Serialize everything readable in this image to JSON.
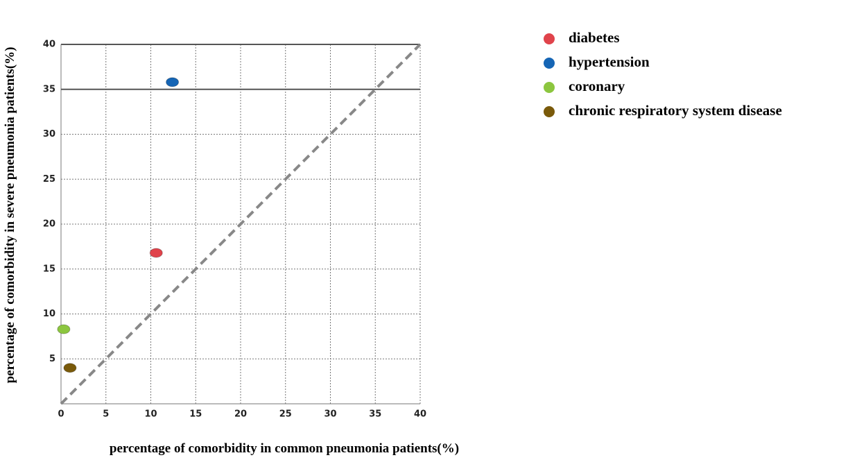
{
  "chart_data": {
    "type": "scatter",
    "x_label": "percentage of comorbidity in common pneumonia patients(%)",
    "y_label": "percentage of comorbidity in severe pneumonia patients(%)",
    "series": [
      {
        "name": "diabetes",
        "color": "#e0434b",
        "x": [
          10.6
        ],
        "values": [
          16.8
        ]
      },
      {
        "name": "hypertension",
        "color": "#1565b5",
        "x": [
          12.4
        ],
        "values": [
          35.8
        ]
      },
      {
        "name": "coronary",
        "color": "#8cc63f",
        "x": [
          0.3
        ],
        "values": [
          8.3
        ]
      },
      {
        "name": "chronic respiratory system disease",
        "color": "#7a5a0a",
        "x": [
          1.0
        ],
        "values": [
          4.0
        ]
      }
    ],
    "xlim": [
      0,
      40
    ],
    "ylim": [
      0,
      40
    ],
    "xticks": [
      0,
      5,
      10,
      15,
      20,
      25,
      30,
      35,
      40
    ],
    "yticks": [
      5,
      10,
      15,
      20,
      25,
      30,
      35,
      40
    ],
    "grid": true,
    "hline": 35,
    "diagonal": true,
    "legend": "right"
  }
}
